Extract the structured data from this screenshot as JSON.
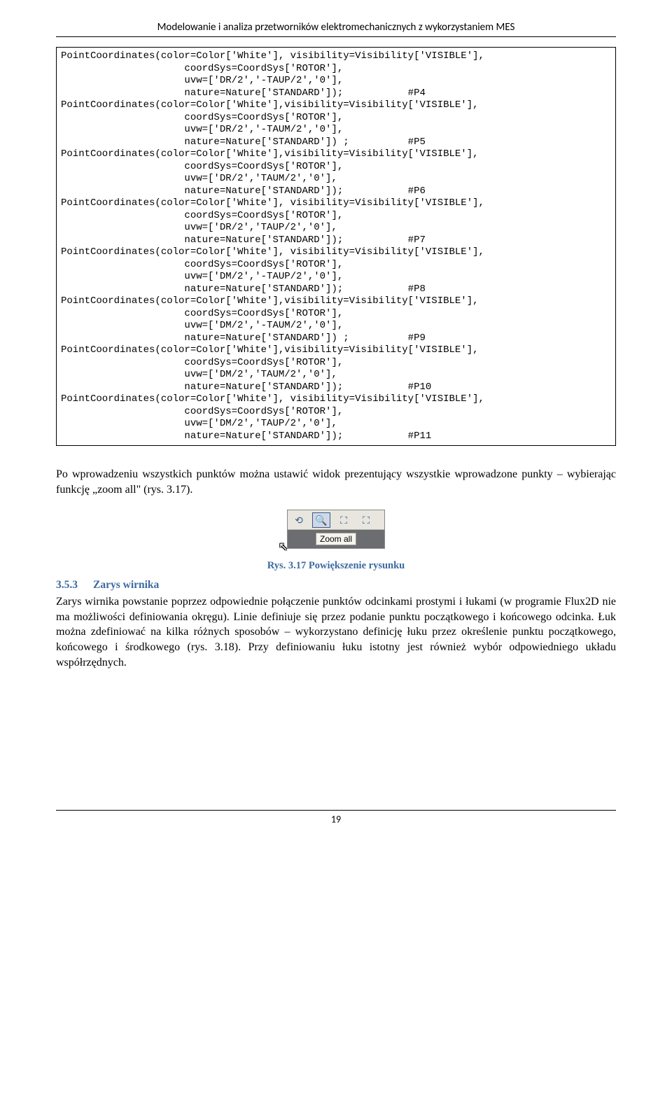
{
  "header": "Modelowanie i analiza przetworników elektromechanicznych z wykorzystaniem MES",
  "code": "PointCoordinates(color=Color['White'], visibility=Visibility['VISIBLE'],\n                     coordSys=CoordSys['ROTOR'],\n                     uvw=['DR/2','-TAUP/2','0'],\n                     nature=Nature['STANDARD']);           #P4\nPointCoordinates(color=Color['White'],visibility=Visibility['VISIBLE'],\n                     coordSys=CoordSys['ROTOR'],\n                     uvw=['DR/2','-TAUM/2','0'],\n                     nature=Nature['STANDARD']) ;          #P5\nPointCoordinates(color=Color['White'],visibility=Visibility['VISIBLE'],\n                     coordSys=CoordSys['ROTOR'],\n                     uvw=['DR/2','TAUM/2','0'],\n                     nature=Nature['STANDARD']);           #P6\nPointCoordinates(color=Color['White'], visibility=Visibility['VISIBLE'],\n                     coordSys=CoordSys['ROTOR'],\n                     uvw=['DR/2','TAUP/2','0'],\n                     nature=Nature['STANDARD']);           #P7\nPointCoordinates(color=Color['White'], visibility=Visibility['VISIBLE'],\n                     coordSys=CoordSys['ROTOR'],\n                     uvw=['DM/2','-TAUP/2','0'],\n                     nature=Nature['STANDARD']);           #P8\nPointCoordinates(color=Color['White'],visibility=Visibility['VISIBLE'],\n                     coordSys=CoordSys['ROTOR'],\n                     uvw=['DM/2','-TAUM/2','0'],\n                     nature=Nature['STANDARD']) ;          #P9\nPointCoordinates(color=Color['White'],visibility=Visibility['VISIBLE'],\n                     coordSys=CoordSys['ROTOR'],\n                     uvw=['DM/2','TAUM/2','0'],\n                     nature=Nature['STANDARD']);           #P10\nPointCoordinates(color=Color['White'], visibility=Visibility['VISIBLE'],\n                     coordSys=CoordSys['ROTOR'],\n                     uvw=['DM/2','TAUP/2','0'],\n                     nature=Nature['STANDARD']);           #P11",
  "para1": "Po wprowadzeniu wszystkich punktów można ustawić widok prezentujący wszystkie wprowadzone punkty – wybierając funkcję „zoom all\" (rys. 3.17).",
  "toolbar": {
    "tooltip": "Zoom all",
    "icons": [
      "⟲",
      "🔍",
      "⛶",
      "⛶"
    ]
  },
  "figcap": "Rys. 3.17 Powiększenie rysunku",
  "section": {
    "num": "3.5.3",
    "title": "Zarys wirnika"
  },
  "para2": "Zarys wirnika powstanie poprzez odpowiednie połączenie punktów odcinkami prostymi i łukami (w programie Flux2D nie ma możliwości definiowania okręgu). Linie definiuje się przez podanie punktu początkowego i końcowego odcinka. Łuk można zdefiniować na kilka różnych sposobów – wykorzystano definicję łuku przez określenie punktu początkowego, końcowego i środkowego (rys. 3.18). Przy definiowaniu łuku istotny jest również wybór odpowiedniego układu współrzędnych.",
  "pagenum": "19"
}
